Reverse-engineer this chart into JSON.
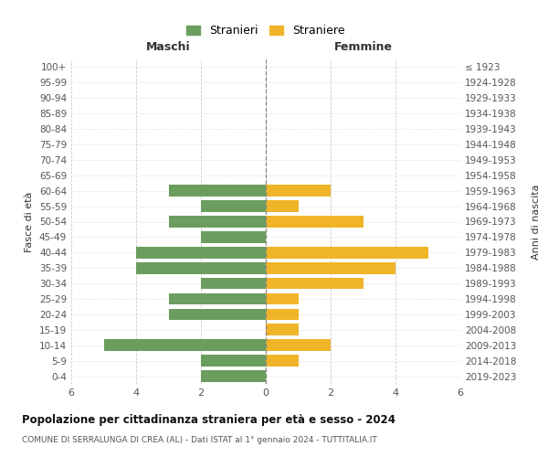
{
  "age_groups": [
    "0-4",
    "5-9",
    "10-14",
    "15-19",
    "20-24",
    "25-29",
    "30-34",
    "35-39",
    "40-44",
    "45-49",
    "50-54",
    "55-59",
    "60-64",
    "65-69",
    "70-74",
    "75-79",
    "80-84",
    "85-89",
    "90-94",
    "95-99",
    "100+"
  ],
  "birth_years": [
    "2019-2023",
    "2014-2018",
    "2009-2013",
    "2004-2008",
    "1999-2003",
    "1994-1998",
    "1989-1993",
    "1984-1988",
    "1979-1983",
    "1974-1978",
    "1969-1973",
    "1964-1968",
    "1959-1963",
    "1954-1958",
    "1949-1953",
    "1944-1948",
    "1939-1943",
    "1934-1938",
    "1929-1933",
    "1924-1928",
    "≤ 1923"
  ],
  "males": [
    2,
    2,
    5,
    0,
    3,
    3,
    2,
    4,
    4,
    2,
    3,
    2,
    3,
    0,
    0,
    0,
    0,
    0,
    0,
    0,
    0
  ],
  "females": [
    0,
    1,
    2,
    1,
    1,
    1,
    3,
    4,
    5,
    0,
    3,
    1,
    2,
    0,
    0,
    0,
    0,
    0,
    0,
    0,
    0
  ],
  "male_color": "#6b9e5e",
  "female_color": "#f0b429",
  "xlim": 6,
  "title": "Popolazione per cittadinanza straniera per età e sesso - 2024",
  "subtitle": "COMUNE DI SERRALUNGA DI CREA (AL) - Dati ISTAT al 1° gennaio 2024 - TUTTITALIA.IT",
  "xlabel_left": "Maschi",
  "xlabel_right": "Femmine",
  "ylabel_left": "Fasce di età",
  "ylabel_right": "Anni di nascita",
  "legend_male": "Stranieri",
  "legend_female": "Straniere",
  "bg_color": "#ffffff",
  "grid_color": "#cccccc",
  "bar_height": 0.75
}
